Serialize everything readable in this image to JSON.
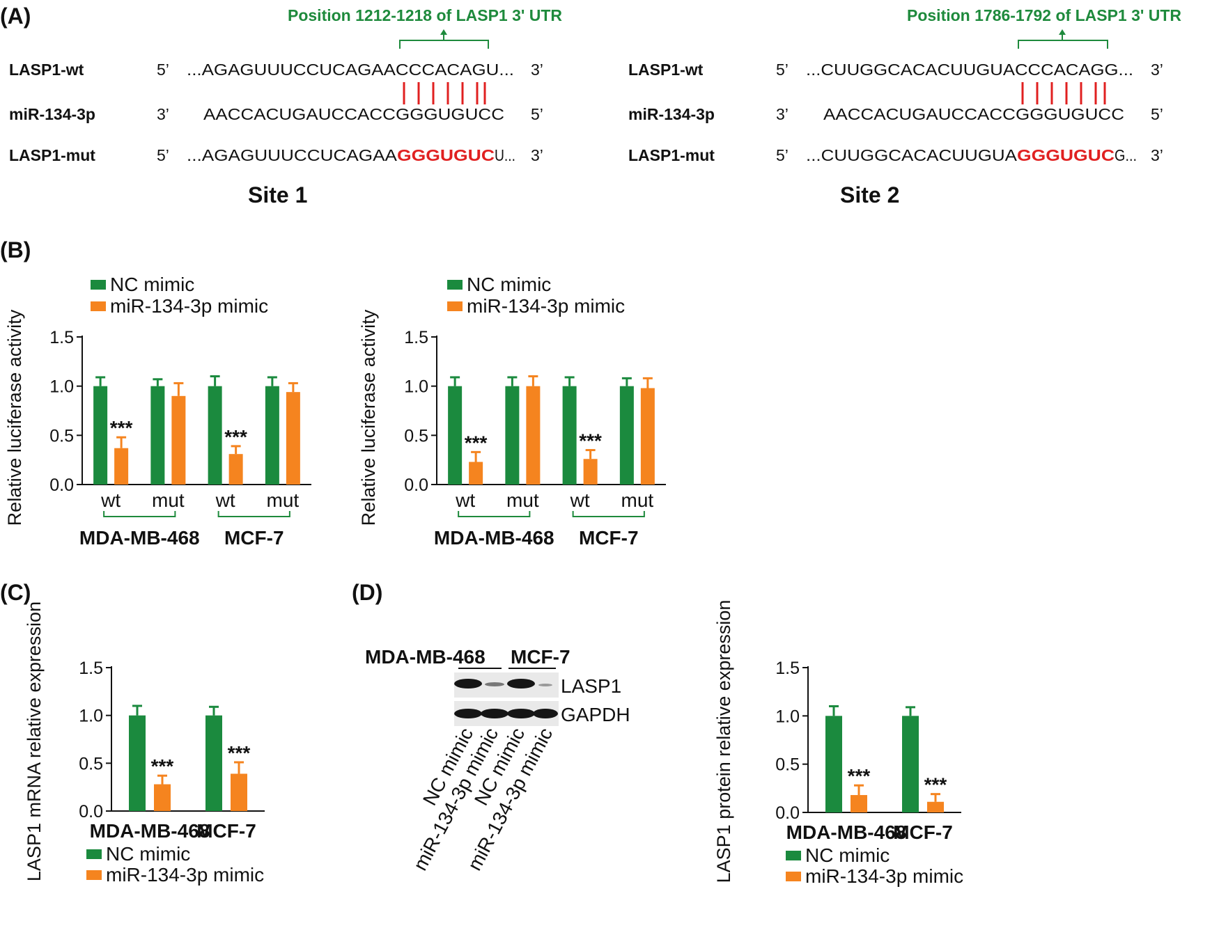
{
  "colors": {
    "nc": "#1b8a3e",
    "mir": "#f5841f",
    "green_text": "#1e8a3c",
    "red_seq": "#e02020"
  },
  "panels": {
    "a": "(A)",
    "b": "(B)",
    "c": "(C)",
    "d": "(D)"
  },
  "panel_a": {
    "site1": {
      "title": "Site 1",
      "position": "Position 1212-1218 of LASP1 3' UTR",
      "rows": [
        {
          "label": "LASP1-wt",
          "end5": "5’",
          "seq_pre": "...AGAGUUUCCUCAGAACCCACAGU...",
          "seq_red": "",
          "seq_post": "",
          "end3": "3’"
        },
        {
          "label": "miR-134-3p",
          "end5": "3’",
          "seq_pre": "AACCACUGAUCCACCGGGUGUCC",
          "seq_red": "",
          "seq_post": "",
          "end3": "5’"
        },
        {
          "label": "LASP1-mut",
          "end5": "5’",
          "seq_pre": "...AGAGUUUCCUCAGAA",
          "seq_red": "GGGUGUC",
          "seq_post": "U...",
          "end3": "3’"
        }
      ]
    },
    "site2": {
      "title": "Site 2",
      "position": "Position 1786-1792 of LASP1 3' UTR",
      "rows": [
        {
          "label": "LASP1-wt",
          "end5": "5’",
          "seq_pre": "...CUUGGCACACUUGUACCCACAGG...",
          "seq_red": "",
          "seq_post": "",
          "end3": "3’"
        },
        {
          "label": "miR-134-3p",
          "end5": "3’",
          "seq_pre": "AACCACUGAUCCACCGGGUGUCC",
          "seq_red": "",
          "seq_post": "",
          "end3": "5’"
        },
        {
          "label": "LASP1-mut",
          "end5": "5’",
          "seq_pre": "...CUUGGCACACUUGUA",
          "seq_red": "GGGUGUC",
          "seq_post": "G...",
          "end3": "3’"
        }
      ]
    }
  },
  "blot": {
    "headers": [
      "MDA-MB-468",
      "MCF-7"
    ],
    "bands": [
      "LASP1",
      "GAPDH"
    ],
    "lanes": [
      "NC mimic",
      "miR-134-3p mimic",
      "NC mimic",
      "miR-134-3p mimic"
    ]
  },
  "chart_data": [
    {
      "id": "B1",
      "type": "bar",
      "ylabel": "Relative luciferase activity",
      "ylim": [
        0,
        1.5
      ],
      "yticks": [
        "0.0",
        "0.5",
        "1.0",
        "1.5"
      ],
      "legend": [
        "NC mimic",
        "miR-134-3p mimic"
      ],
      "legend_position": "top-left",
      "categories": [
        "wt",
        "mut",
        "wt",
        "mut"
      ],
      "groups": [
        {
          "label": "MDA-MB-468",
          "span": [
            0,
            1
          ]
        },
        {
          "label": "MCF-7",
          "span": [
            2,
            3
          ]
        }
      ],
      "group_brackets": true,
      "category_bold": false,
      "series": [
        {
          "name": "NC mimic",
          "values": [
            1.0,
            1.0,
            1.0,
            1.0
          ],
          "errors": [
            0.09,
            0.07,
            0.1,
            0.09
          ]
        },
        {
          "name": "miR-134-3p mimic",
          "values": [
            0.37,
            0.9,
            0.31,
            0.94
          ],
          "errors": [
            0.11,
            0.13,
            0.08,
            0.09
          ]
        }
      ],
      "annotations": [
        "***",
        "",
        "***",
        ""
      ]
    },
    {
      "id": "B2",
      "type": "bar",
      "ylabel": "Relative luciferase activity",
      "ylim": [
        0,
        1.5
      ],
      "yticks": [
        "0.0",
        "0.5",
        "1.0",
        "1.5"
      ],
      "legend": [
        "NC mimic",
        "miR-134-3p mimic"
      ],
      "legend_position": "top-left",
      "categories": [
        "wt",
        "mut",
        "wt",
        "mut"
      ],
      "groups": [
        {
          "label": "MDA-MB-468",
          "span": [
            0,
            1
          ]
        },
        {
          "label": "MCF-7",
          "span": [
            2,
            3
          ]
        }
      ],
      "group_brackets": true,
      "category_bold": false,
      "series": [
        {
          "name": "NC mimic",
          "values": [
            1.0,
            1.0,
            1.0,
            1.0
          ],
          "errors": [
            0.09,
            0.09,
            0.09,
            0.08
          ]
        },
        {
          "name": "miR-134-3p mimic",
          "values": [
            0.23,
            1.0,
            0.26,
            0.98
          ],
          "errors": [
            0.1,
            0.1,
            0.09,
            0.1
          ]
        }
      ],
      "annotations": [
        "***",
        "",
        "***",
        ""
      ]
    },
    {
      "id": "C",
      "type": "bar",
      "ylabel": "LASP1 mRNA relative expression",
      "ylim": [
        0,
        1.5
      ],
      "yticks": [
        "0.0",
        "0.5",
        "1.0",
        "1.5"
      ],
      "legend": [
        "NC mimic",
        "miR-134-3p mimic"
      ],
      "legend_position": "bottom",
      "categories": [
        "MDA-MB-468",
        "MCF-7"
      ],
      "groups": [],
      "group_brackets": false,
      "category_bold": true,
      "series": [
        {
          "name": "NC mimic",
          "values": [
            1.0,
            1.0
          ],
          "errors": [
            0.1,
            0.09
          ]
        },
        {
          "name": "miR-134-3p mimic",
          "values": [
            0.28,
            0.39
          ],
          "errors": [
            0.09,
            0.12
          ]
        }
      ],
      "annotations": [
        "***",
        "***"
      ]
    },
    {
      "id": "D",
      "type": "bar",
      "ylabel": "LASP1 protein relative expression",
      "ylim": [
        0,
        1.5
      ],
      "yticks": [
        "0.0",
        "0.5",
        "1.0",
        "1.5"
      ],
      "legend": [
        "NC mimic",
        "miR-134-3p mimic"
      ],
      "legend_position": "bottom",
      "categories": [
        "MDA-MB-468",
        "MCF-7"
      ],
      "groups": [],
      "group_brackets": false,
      "category_bold": true,
      "series": [
        {
          "name": "NC mimic",
          "values": [
            1.0,
            1.0
          ],
          "errors": [
            0.1,
            0.09
          ]
        },
        {
          "name": "miR-134-3p mimic",
          "values": [
            0.18,
            0.11
          ],
          "errors": [
            0.1,
            0.08
          ]
        }
      ],
      "annotations": [
        "***",
        "***"
      ]
    }
  ]
}
